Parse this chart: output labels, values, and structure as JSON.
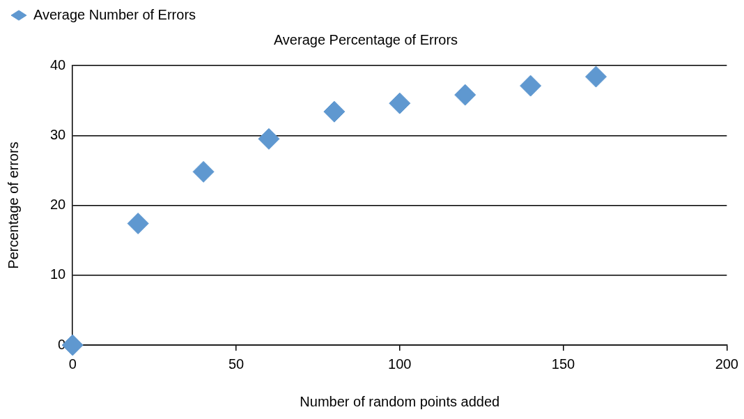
{
  "chart_data": {
    "type": "scatter",
    "title": "Average Percentage of Errors",
    "xlabel": "Number of random points added",
    "ylabel": "Percentage of errors",
    "x": [
      0,
      20,
      40,
      60,
      80,
      100,
      120,
      140,
      160
    ],
    "series": [
      {
        "name": "Average Number of Errors",
        "color": "#5f98d0",
        "values": [
          0,
          17.4,
          24.8,
          29.5,
          33.4,
          34.6,
          35.8,
          37.1,
          38.4
        ]
      }
    ],
    "xlim": [
      0,
      200
    ],
    "xticks": [
      0,
      50,
      100,
      150,
      200
    ],
    "ylim": [
      0,
      40
    ],
    "yticks": [
      0,
      10,
      20,
      30,
      40
    ],
    "grid": "y",
    "legend": "top left",
    "marker": "diamond"
  }
}
